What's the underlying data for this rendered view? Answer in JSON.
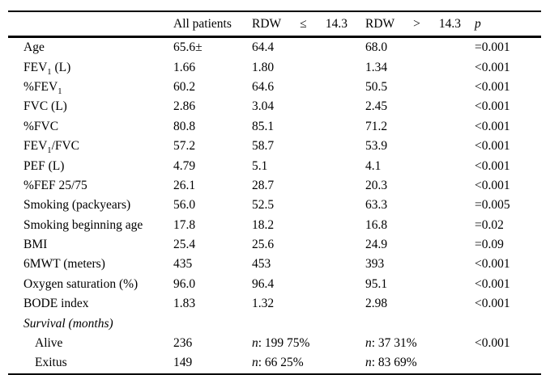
{
  "page": {
    "background": "#ffffff",
    "text_color": "#000000"
  },
  "table": {
    "header": {
      "col_empty": "",
      "col_all_patients": "All patients",
      "col_rdw_le_parts": [
        "RDW",
        "≤",
        "14.3"
      ],
      "col_rdw_gt_parts": [
        "RDW",
        ">",
        "14.3"
      ],
      "col_p": "p"
    },
    "rows": [
      {
        "label_parts": [
          {
            "t": "Age"
          }
        ],
        "cells": [
          "65.6±",
          "64.4",
          "68.0",
          "=0.001"
        ]
      },
      {
        "label_parts": [
          {
            "t": "FEV"
          },
          {
            "t": "1",
            "sub": true
          },
          {
            "t": " (L)"
          }
        ],
        "cells": [
          "1.66",
          "1.80",
          "1.34",
          "<0.001"
        ]
      },
      {
        "label_parts": [
          {
            "t": "%FEV"
          },
          {
            "t": "1",
            "sub": true
          }
        ],
        "cells": [
          "60.2",
          "64.6",
          "50.5",
          "<0.001"
        ]
      },
      {
        "label_parts": [
          {
            "t": "FVC (L)"
          }
        ],
        "cells": [
          "2.86",
          "3.04",
          "2.45",
          "<0.001"
        ]
      },
      {
        "label_parts": [
          {
            "t": "%FVC"
          }
        ],
        "cells": [
          "80.8",
          "85.1",
          "71.2",
          "<0.001"
        ]
      },
      {
        "label_parts": [
          {
            "t": "FEV"
          },
          {
            "t": "1",
            "sub": true
          },
          {
            "t": "/FVC"
          }
        ],
        "cells": [
          "57.2",
          "58.7",
          "53.9",
          "<0.001"
        ]
      },
      {
        "label_parts": [
          {
            "t": "PEF (L)"
          }
        ],
        "cells": [
          "4.79",
          "5.1",
          "4.1",
          "<0.001"
        ]
      },
      {
        "label_parts": [
          {
            "t": "%FEF 25/75"
          }
        ],
        "cells": [
          "26.1",
          "28.7",
          "20.3",
          "<0.001"
        ]
      },
      {
        "label_parts": [
          {
            "t": "Smoking (packyears)"
          }
        ],
        "cells": [
          "56.0",
          "52.5",
          "63.3",
          "=0.005"
        ]
      },
      {
        "label_parts": [
          {
            "t": "Smoking beginning age"
          }
        ],
        "cells": [
          "17.8",
          "18.2",
          "16.8",
          "=0.02"
        ]
      },
      {
        "label_parts": [
          {
            "t": "BMI"
          }
        ],
        "cells": [
          "25.4",
          "25.6",
          "24.9",
          "=0.09"
        ]
      },
      {
        "label_parts": [
          {
            "t": "6MWT (meters)"
          }
        ],
        "cells": [
          "435",
          "453",
          "393",
          "<0.001"
        ]
      },
      {
        "label_parts": [
          {
            "t": "Oxygen saturation (%)"
          }
        ],
        "cells": [
          "96.0",
          "96.4",
          "95.1",
          "<0.001"
        ]
      },
      {
        "label_parts": [
          {
            "t": "BODE index"
          }
        ],
        "cells": [
          "1.83",
          "1.32",
          "2.98",
          "<0.001"
        ]
      },
      {
        "label_parts": [
          {
            "t": "Survival (months)"
          }
        ],
        "italic": true,
        "cells": [
          "",
          "",
          "",
          ""
        ]
      },
      {
        "label_parts": [
          {
            "t": "Alive"
          }
        ],
        "indent": true,
        "cells": [
          "236",
          {
            "italic_prefix": "n",
            "text": ": 199 75%"
          },
          {
            "italic_prefix": "n",
            "text": ": 37 31%"
          },
          "<0.001"
        ]
      },
      {
        "label_parts": [
          {
            "t": "Exitus"
          }
        ],
        "indent": true,
        "cells": [
          "149",
          {
            "italic_prefix": "n",
            "text": ": 66 25%"
          },
          {
            "italic_prefix": "n",
            "text": ": 83 69%"
          },
          ""
        ]
      }
    ]
  }
}
